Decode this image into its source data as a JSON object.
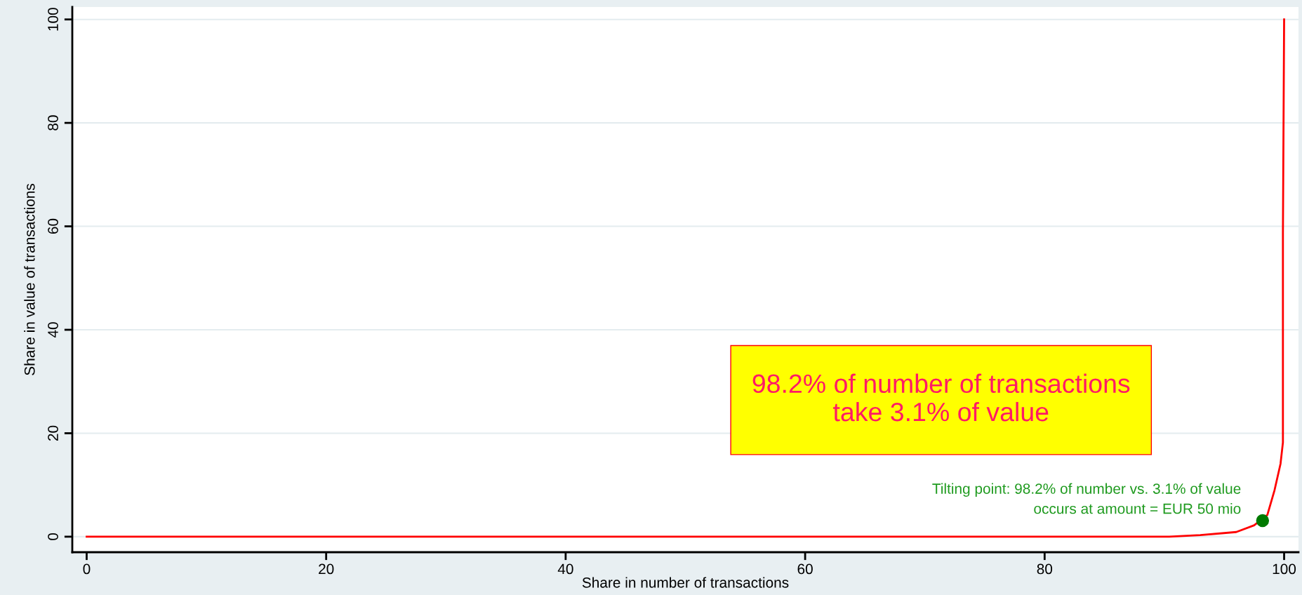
{
  "chart_data": {
    "type": "line",
    "xlabel": "Share in number of transactions",
    "ylabel": "Share in value of transactions",
    "xlim": [
      -1.2,
      101.2
    ],
    "ylim": [
      -3,
      102.4
    ],
    "xticks": [
      0,
      20,
      40,
      60,
      80,
      100
    ],
    "yticks": [
      0,
      20,
      40,
      60,
      80,
      100
    ],
    "grid": "y",
    "line_style": "solid",
    "series": [
      {
        "color": "#ff0000",
        "x": [
          0,
          90.4,
          93,
          96.0,
          97.5,
          98.6,
          99.2,
          99.7,
          99.9,
          99.9,
          100
        ],
        "values": [
          0,
          0,
          0.3,
          0.9,
          2.2,
          4.2,
          9.0,
          14.1,
          18.2,
          58.8,
          100
        ]
      },
      {
        "type": "scatter",
        "color": "#007a00",
        "x": [
          98.2
        ],
        "values": [
          3.1
        ],
        "marker": "circle"
      }
    ],
    "annotations": [
      "98.2% of number of transactions\ntake 3.1% of value",
      {
        "text": "Tilting point: 98.2% of number vs. 3.1% of value\noccurs at amount = EUR 50 mio",
        "x": 98.2,
        "y": 3.1
      }
    ]
  }
}
